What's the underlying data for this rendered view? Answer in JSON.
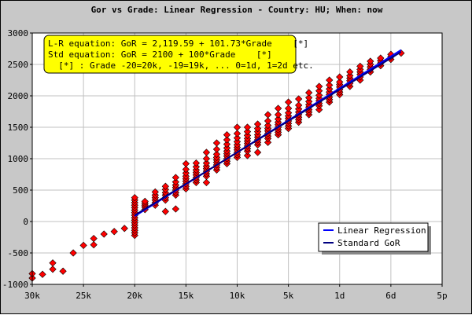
{
  "chart_data": {
    "type": "scatter",
    "title": "Gor vs Grade: Linear Regression - Country: HU; When: now",
    "xlim": [
      -30,
      7
    ],
    "ylim": [
      -1000,
      3000
    ],
    "x_ticks": [
      {
        "value": -30,
        "label": "30k"
      },
      {
        "value": -25,
        "label": "25k"
      },
      {
        "value": -20,
        "label": "20k"
      },
      {
        "value": -15,
        "label": "15k"
      },
      {
        "value": -10,
        "label": "10k"
      },
      {
        "value": -5,
        "label": "5k"
      },
      {
        "value": 0,
        "label": "1d"
      },
      {
        "value": 5,
        "label": "6d"
      },
      {
        "value": 10,
        "label": "5p"
      }
    ],
    "y_ticks": [
      -1000,
      -500,
      0,
      500,
      1000,
      1500,
      2000,
      2500,
      3000
    ],
    "grid": true,
    "annotation_box": {
      "lines": [
        "L-R equation: GoR = 2,119.59 + 101.73*Grade    [*]",
        "Std equation: GoR = 2100 + 100*Grade    [*]",
        "  [*] : Grade -20=20k, -19=19k, ... 0=1d, 1=2d etc."
      ],
      "background": "#ffff00"
    },
    "legend": {
      "placement": "bottom-right",
      "entries": [
        {
          "label": "Linear Regression",
          "color": "#0000ff"
        },
        {
          "label": "Standard GoR",
          "color": "#000080"
        }
      ]
    },
    "lines": [
      {
        "name": "Linear Regression",
        "intercept": 2119.59,
        "slope": 101.73,
        "x_range": [
          -20,
          6
        ],
        "color": "#0000ff"
      },
      {
        "name": "Standard GoR",
        "intercept": 2100,
        "slope": 100,
        "x_range": [
          -20,
          6
        ],
        "color": "#000080"
      }
    ],
    "points_color": "#ff0000",
    "points": [
      [
        -30,
        -900
      ],
      [
        -30,
        -830
      ],
      [
        -29,
        -840
      ],
      [
        -28,
        -660
      ],
      [
        -28,
        -760
      ],
      [
        -27,
        -790
      ],
      [
        -26,
        -500
      ],
      [
        -25,
        -380
      ],
      [
        -24,
        -270
      ],
      [
        -24,
        -370
      ],
      [
        -23,
        -200
      ],
      [
        -22,
        -160
      ],
      [
        -21,
        -110
      ],
      [
        -20,
        -220
      ],
      [
        -20,
        -180
      ],
      [
        -20,
        -140
      ],
      [
        -20,
        -100
      ],
      [
        -20,
        -60
      ],
      [
        -20,
        -20
      ],
      [
        -20,
        20
      ],
      [
        -20,
        60
      ],
      [
        -20,
        100
      ],
      [
        -20,
        140
      ],
      [
        -20,
        180
      ],
      [
        -20,
        220
      ],
      [
        -20,
        260
      ],
      [
        -20,
        300
      ],
      [
        -20,
        340
      ],
      [
        -20,
        380
      ],
      [
        -19,
        190
      ],
      [
        -19,
        230
      ],
      [
        -19,
        260
      ],
      [
        -19,
        290
      ],
      [
        -19,
        320
      ],
      [
        -18,
        260
      ],
      [
        -18,
        300
      ],
      [
        -18,
        340
      ],
      [
        -18,
        380
      ],
      [
        -18,
        420
      ],
      [
        -18,
        470
      ],
      [
        -17,
        160
      ],
      [
        -17,
        340
      ],
      [
        -17,
        380
      ],
      [
        -17,
        420
      ],
      [
        -17,
        460
      ],
      [
        -17,
        510
      ],
      [
        -17,
        560
      ],
      [
        -16,
        200
      ],
      [
        -16,
        420
      ],
      [
        -16,
        460
      ],
      [
        -16,
        500
      ],
      [
        -16,
        540
      ],
      [
        -16,
        580
      ],
      [
        -16,
        630
      ],
      [
        -16,
        700
      ],
      [
        -15,
        520
      ],
      [
        -15,
        560
      ],
      [
        -15,
        600
      ],
      [
        -15,
        640
      ],
      [
        -15,
        680
      ],
      [
        -15,
        720
      ],
      [
        -15,
        770
      ],
      [
        -15,
        830
      ],
      [
        -15,
        920
      ],
      [
        -14,
        620
      ],
      [
        -14,
        660
      ],
      [
        -14,
        700
      ],
      [
        -14,
        740
      ],
      [
        -14,
        780
      ],
      [
        -14,
        820
      ],
      [
        -14,
        870
      ],
      [
        -14,
        930
      ],
      [
        -13,
        620
      ],
      [
        -13,
        720
      ],
      [
        -13,
        760
      ],
      [
        -13,
        800
      ],
      [
        -13,
        840
      ],
      [
        -13,
        880
      ],
      [
        -13,
        930
      ],
      [
        -13,
        1000
      ],
      [
        -13,
        1100
      ],
      [
        -12,
        820
      ],
      [
        -12,
        860
      ],
      [
        -12,
        900
      ],
      [
        -12,
        940
      ],
      [
        -12,
        980
      ],
      [
        -12,
        1020
      ],
      [
        -12,
        1070
      ],
      [
        -12,
        1150
      ],
      [
        -12,
        1250
      ],
      [
        -11,
        920
      ],
      [
        -11,
        960
      ],
      [
        -11,
        1000
      ],
      [
        -11,
        1040
      ],
      [
        -11,
        1080
      ],
      [
        -11,
        1120
      ],
      [
        -11,
        1170
      ],
      [
        -11,
        1230
      ],
      [
        -11,
        1300
      ],
      [
        -11,
        1380
      ],
      [
        -10,
        1020
      ],
      [
        -10,
        1060
      ],
      [
        -10,
        1100
      ],
      [
        -10,
        1140
      ],
      [
        -10,
        1180
      ],
      [
        -10,
        1220
      ],
      [
        -10,
        1270
      ],
      [
        -10,
        1330
      ],
      [
        -10,
        1400
      ],
      [
        -10,
        1500
      ],
      [
        -9,
        1050
      ],
      [
        -9,
        1120
      ],
      [
        -9,
        1160
      ],
      [
        -9,
        1200
      ],
      [
        -9,
        1240
      ],
      [
        -9,
        1280
      ],
      [
        -9,
        1320
      ],
      [
        -9,
        1370
      ],
      [
        -9,
        1430
      ],
      [
        -9,
        1500
      ],
      [
        -8,
        1100
      ],
      [
        -8,
        1220
      ],
      [
        -8,
        1260
      ],
      [
        -8,
        1300
      ],
      [
        -8,
        1340
      ],
      [
        -8,
        1380
      ],
      [
        -8,
        1430
      ],
      [
        -8,
        1480
      ],
      [
        -8,
        1550
      ],
      [
        -7,
        1260
      ],
      [
        -7,
        1320
      ],
      [
        -7,
        1360
      ],
      [
        -7,
        1400
      ],
      [
        -7,
        1440
      ],
      [
        -7,
        1480
      ],
      [
        -7,
        1530
      ],
      [
        -7,
        1600
      ],
      [
        -7,
        1700
      ],
      [
        -6,
        1380
      ],
      [
        -6,
        1420
      ],
      [
        -6,
        1460
      ],
      [
        -6,
        1500
      ],
      [
        -6,
        1540
      ],
      [
        -6,
        1580
      ],
      [
        -6,
        1630
      ],
      [
        -6,
        1700
      ],
      [
        -6,
        1800
      ],
      [
        -5,
        1480
      ],
      [
        -5,
        1520
      ],
      [
        -5,
        1560
      ],
      [
        -5,
        1600
      ],
      [
        -5,
        1640
      ],
      [
        -5,
        1680
      ],
      [
        -5,
        1730
      ],
      [
        -5,
        1800
      ],
      [
        -5,
        1900
      ],
      [
        -4,
        1580
      ],
      [
        -4,
        1620
      ],
      [
        -4,
        1660
      ],
      [
        -4,
        1700
      ],
      [
        -4,
        1740
      ],
      [
        -4,
        1790
      ],
      [
        -4,
        1850
      ],
      [
        -4,
        1950
      ],
      [
        -3,
        1700
      ],
      [
        -3,
        1740
      ],
      [
        -3,
        1780
      ],
      [
        -3,
        1820
      ],
      [
        -3,
        1860
      ],
      [
        -3,
        1910
      ],
      [
        -3,
        1970
      ],
      [
        -3,
        2050
      ],
      [
        -2,
        1780
      ],
      [
        -2,
        1840
      ],
      [
        -2,
        1880
      ],
      [
        -2,
        1920
      ],
      [
        -2,
        1960
      ],
      [
        -2,
        2010
      ],
      [
        -2,
        2080
      ],
      [
        -2,
        2150
      ],
      [
        -1,
        1900
      ],
      [
        -1,
        1940
      ],
      [
        -1,
        1980
      ],
      [
        -1,
        2020
      ],
      [
        -1,
        2060
      ],
      [
        -1,
        2110
      ],
      [
        -1,
        2170
      ],
      [
        -1,
        2250
      ],
      [
        0,
        2020
      ],
      [
        0,
        2060
      ],
      [
        0,
        2100
      ],
      [
        0,
        2140
      ],
      [
        0,
        2180
      ],
      [
        0,
        2220
      ],
      [
        0,
        2300
      ],
      [
        1,
        2150
      ],
      [
        1,
        2200
      ],
      [
        1,
        2240
      ],
      [
        1,
        2280
      ],
      [
        1,
        2320
      ],
      [
        1,
        2380
      ],
      [
        2,
        2250
      ],
      [
        2,
        2300
      ],
      [
        2,
        2340
      ],
      [
        2,
        2380
      ],
      [
        2,
        2420
      ],
      [
        2,
        2470
      ],
      [
        3,
        2380
      ],
      [
        3,
        2420
      ],
      [
        3,
        2460
      ],
      [
        3,
        2500
      ],
      [
        3,
        2550
      ],
      [
        4,
        2480
      ],
      [
        4,
        2520
      ],
      [
        4,
        2560
      ],
      [
        4,
        2600
      ],
      [
        5,
        2580
      ],
      [
        5,
        2620
      ],
      [
        5,
        2660
      ],
      [
        6,
        2680
      ]
    ]
  }
}
